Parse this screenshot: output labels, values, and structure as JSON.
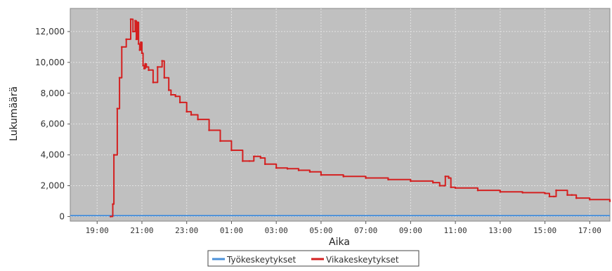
{
  "chart_data": {
    "type": "line",
    "xlabel": "Aika",
    "ylabel": "Lukumäärä",
    "x_tick_labels": [
      "19:00",
      "21:00",
      "23:00",
      "01:00",
      "03:00",
      "05:00",
      "07:00",
      "09:00",
      "11:00",
      "13:00",
      "15:00",
      "17:00"
    ],
    "y_tick_labels": [
      "0",
      "2,000",
      "4,000",
      "6,000",
      "8,000",
      "10,000",
      "12,000"
    ],
    "y_ticks": [
      0,
      2000,
      4000,
      6000,
      8000,
      10000,
      12000
    ],
    "ylim": [
      -300,
      13500
    ],
    "xlim_hours_from_19": [
      -1.2,
      22.9
    ],
    "grid": true,
    "legend_position": "bottom-center",
    "background": "#c0c0c0",
    "series": [
      {
        "name": "Työkeskeytykset",
        "color": "#4a90d9",
        "x_hours_from_19": [
          -1.2,
          22.9
        ],
        "values": [
          60,
          60
        ]
      },
      {
        "name": "Vikakeskeytykset",
        "color": "#d42020",
        "x_hours_from_19": [
          0.6,
          0.7,
          0.75,
          0.9,
          1.0,
          1.1,
          1.3,
          1.5,
          1.6,
          1.7,
          1.75,
          1.8,
          1.85,
          1.9,
          1.95,
          2.0,
          2.05,
          2.1,
          2.15,
          2.2,
          2.3,
          2.5,
          2.7,
          2.9,
          3.0,
          3.2,
          3.3,
          3.5,
          3.7,
          4.0,
          4.2,
          4.5,
          5.0,
          5.5,
          6.0,
          6.5,
          6.8,
          7.0,
          7.3,
          7.5,
          8.0,
          8.5,
          9.0,
          9.5,
          10.0,
          11.0,
          12.0,
          13.0,
          14.0,
          15.0,
          15.3,
          15.5,
          15.55,
          15.7,
          15.8,
          16.0,
          17.0,
          18.0,
          19.0,
          20.0,
          20.2,
          20.4,
          20.5,
          21.0,
          21.2,
          21.4,
          22.0,
          22.9
        ],
        "values": [
          0,
          800,
          4000,
          7000,
          9000,
          11000,
          11500,
          12800,
          12000,
          12700,
          11500,
          12600,
          11200,
          10800,
          11300,
          10600,
          9800,
          9600,
          9900,
          9700,
          9500,
          8700,
          9700,
          10100,
          9000,
          8200,
          7900,
          7800,
          7400,
          6800,
          6600,
          6300,
          5600,
          4900,
          4300,
          3600,
          3600,
          3900,
          3800,
          3400,
          3150,
          3100,
          3000,
          2900,
          2700,
          2600,
          2500,
          2400,
          2300,
          2200,
          2000,
          2000,
          2600,
          2500,
          1900,
          1850,
          1700,
          1600,
          1550,
          1500,
          1300,
          1300,
          1700,
          1400,
          1400,
          1200,
          1100,
          1000
        ]
      }
    ]
  }
}
